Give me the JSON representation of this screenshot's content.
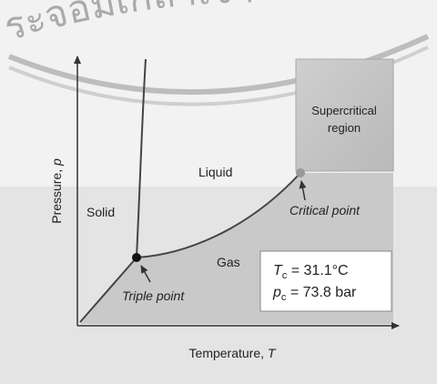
{
  "watermark": "ระจอมเกล้าเจ้า",
  "axes": {
    "y_label": {
      "text": "Pressure, ",
      "var": "p"
    },
    "x_label": {
      "text": "Temperature, ",
      "var": "T"
    }
  },
  "regions": {
    "solid": "Solid",
    "liquid": "Liquid",
    "gas": "Gas",
    "supercritical": [
      "Supercritical",
      "region"
    ]
  },
  "points": {
    "critical": "Critical point",
    "triple": "Triple point"
  },
  "box": [
    {
      "symbol": "T",
      "sub": "c",
      "rest": " = 31.1°C"
    },
    {
      "symbol": "p",
      "sub": "c",
      "rest": " = 73.8 bar"
    }
  ]
}
